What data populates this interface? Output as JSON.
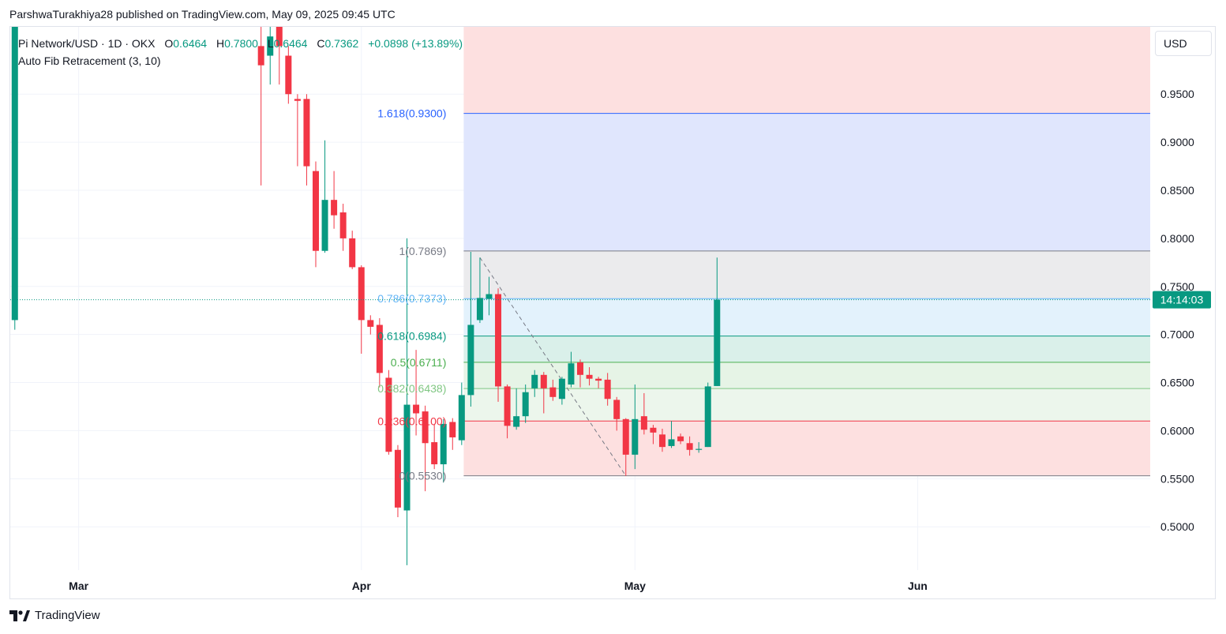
{
  "credit": "ParshwaTurakhiya28 published on TradingView.com, May 09, 2025 09:45 UTC",
  "legend": {
    "symbol": "Pi Network/USD · 1D · OKX",
    "open_label": "O",
    "open": "0.6464",
    "high_label": "H",
    "high": "0.7800",
    "low_label": "L",
    "low": "0.6464",
    "close_label": "C",
    "close": "0.7362",
    "change": "+0.0898 (+13.89%)",
    "indicator": "Auto Fib Retracement (3, 10)"
  },
  "currency_button": "USD",
  "brand": "TradingView",
  "chart_data": {
    "type": "candlestick",
    "title": "Pi Network/USD · 1D · OKX",
    "ylim": [
      0.455,
      1.02
    ],
    "y_ticks": [
      "0.5000",
      "0.5500",
      "0.6000",
      "0.6500",
      "0.7000",
      "0.7500",
      "0.8000",
      "0.8500",
      "0.9000",
      "0.9500"
    ],
    "x_ticks": [
      {
        "label": "Mar",
        "day": 0
      },
      {
        "label": "Apr",
        "day": 31
      },
      {
        "label": "May",
        "day": 61
      },
      {
        "label": "Jun",
        "day": 92
      }
    ],
    "x_range_days": [
      -7.5,
      117.5
    ],
    "current_price_label": "14:14:03",
    "current_price": 0.7362,
    "colors": {
      "up": "#089981",
      "down": "#f23645",
      "grid": "#f0f3fa",
      "axis_text": "#131722"
    },
    "candles": [
      {
        "day": -7,
        "o": 0.715,
        "h": 1.05,
        "l": 0.705,
        "c": 1.04
      },
      {
        "day": 20,
        "o": 1.0,
        "h": 1.03,
        "l": 0.855,
        "c": 0.98
      },
      {
        "day": 21,
        "o": 0.99,
        "h": 1.03,
        "l": 0.96,
        "c": 1.01
      },
      {
        "day": 22,
        "o": 1.02,
        "h": 1.03,
        "l": 0.96,
        "c": 1.0
      },
      {
        "day": 23,
        "o": 0.99,
        "h": 1.0,
        "l": 0.94,
        "c": 0.95
      },
      {
        "day": 24,
        "o": 0.945,
        "h": 0.95,
        "l": 0.875,
        "c": 0.943
      },
      {
        "day": 25,
        "o": 0.945,
        "h": 0.95,
        "l": 0.855,
        "c": 0.875
      },
      {
        "day": 26,
        "o": 0.87,
        "h": 0.88,
        "l": 0.77,
        "c": 0.787
      },
      {
        "day": 27,
        "o": 0.787,
        "h": 0.902,
        "l": 0.785,
        "c": 0.84
      },
      {
        "day": 28,
        "o": 0.84,
        "h": 0.87,
        "l": 0.81,
        "c": 0.824
      },
      {
        "day": 29,
        "o": 0.827,
        "h": 0.836,
        "l": 0.787,
        "c": 0.8
      },
      {
        "day": 30,
        "o": 0.8,
        "h": 0.808,
        "l": 0.768,
        "c": 0.77
      },
      {
        "day": 31,
        "o": 0.77,
        "h": 0.772,
        "l": 0.68,
        "c": 0.715
      },
      {
        "day": 32,
        "o": 0.715,
        "h": 0.72,
        "l": 0.7,
        "c": 0.708
      },
      {
        "day": 33,
        "o": 0.71,
        "h": 0.717,
        "l": 0.645,
        "c": 0.66
      },
      {
        "day": 34,
        "o": 0.655,
        "h": 0.663,
        "l": 0.575,
        "c": 0.578
      },
      {
        "day": 35,
        "o": 0.58,
        "h": 0.585,
        "l": 0.51,
        "c": 0.52
      },
      {
        "day": 36,
        "o": 0.517,
        "h": 0.8,
        "l": 0.46,
        "c": 0.627
      },
      {
        "day": 37,
        "o": 0.627,
        "h": 0.684,
        "l": 0.595,
        "c": 0.618
      },
      {
        "day": 38,
        "o": 0.62,
        "h": 0.626,
        "l": 0.537,
        "c": 0.587
      },
      {
        "day": 39,
        "o": 0.588,
        "h": 0.607,
        "l": 0.56,
        "c": 0.565
      },
      {
        "day": 40,
        "o": 0.565,
        "h": 0.612,
        "l": 0.546,
        "c": 0.607
      },
      {
        "day": 41,
        "o": 0.609,
        "h": 0.613,
        "l": 0.58,
        "c": 0.593
      },
      {
        "day": 42,
        "o": 0.59,
        "h": 0.65,
        "l": 0.585,
        "c": 0.637
      },
      {
        "day": 43,
        "o": 0.637,
        "h": 0.786,
        "l": 0.625,
        "c": 0.71
      },
      {
        "day": 44,
        "o": 0.715,
        "h": 0.78,
        "l": 0.712,
        "c": 0.738
      },
      {
        "day": 45,
        "o": 0.737,
        "h": 0.76,
        "l": 0.72,
        "c": 0.742
      },
      {
        "day": 46,
        "o": 0.742,
        "h": 0.748,
        "l": 0.63,
        "c": 0.646
      },
      {
        "day": 47,
        "o": 0.646,
        "h": 0.648,
        "l": 0.592,
        "c": 0.605
      },
      {
        "day": 48,
        "o": 0.604,
        "h": 0.644,
        "l": 0.601,
        "c": 0.615
      },
      {
        "day": 49,
        "o": 0.615,
        "h": 0.648,
        "l": 0.608,
        "c": 0.64
      },
      {
        "day": 50,
        "o": 0.644,
        "h": 0.663,
        "l": 0.635,
        "c": 0.658
      },
      {
        "day": 51,
        "o": 0.658,
        "h": 0.661,
        "l": 0.618,
        "c": 0.644
      },
      {
        "day": 52,
        "o": 0.645,
        "h": 0.653,
        "l": 0.631,
        "c": 0.635
      },
      {
        "day": 53,
        "o": 0.633,
        "h": 0.656,
        "l": 0.627,
        "c": 0.654
      },
      {
        "day": 54,
        "o": 0.648,
        "h": 0.682,
        "l": 0.645,
        "c": 0.67
      },
      {
        "day": 55,
        "o": 0.671,
        "h": 0.674,
        "l": 0.645,
        "c": 0.658
      },
      {
        "day": 56,
        "o": 0.658,
        "h": 0.666,
        "l": 0.647,
        "c": 0.654
      },
      {
        "day": 57,
        "o": 0.654,
        "h": 0.656,
        "l": 0.644,
        "c": 0.652
      },
      {
        "day": 58,
        "o": 0.653,
        "h": 0.66,
        "l": 0.626,
        "c": 0.633
      },
      {
        "day": 59,
        "o": 0.632,
        "h": 0.635,
        "l": 0.6,
        "c": 0.612
      },
      {
        "day": 60,
        "o": 0.612,
        "h": 0.613,
        "l": 0.553,
        "c": 0.575
      },
      {
        "day": 61,
        "o": 0.575,
        "h": 0.648,
        "l": 0.56,
        "c": 0.612
      },
      {
        "day": 62,
        "o": 0.615,
        "h": 0.639,
        "l": 0.596,
        "c": 0.601
      },
      {
        "day": 63,
        "o": 0.603,
        "h": 0.606,
        "l": 0.586,
        "c": 0.598
      },
      {
        "day": 64,
        "o": 0.596,
        "h": 0.602,
        "l": 0.578,
        "c": 0.583
      },
      {
        "day": 65,
        "o": 0.584,
        "h": 0.61,
        "l": 0.582,
        "c": 0.591
      },
      {
        "day": 66,
        "o": 0.594,
        "h": 0.597,
        "l": 0.586,
        "c": 0.589
      },
      {
        "day": 67,
        "o": 0.587,
        "h": 0.594,
        "l": 0.574,
        "c": 0.58
      },
      {
        "day": 68,
        "o": 0.58,
        "h": 0.588,
        "l": 0.577,
        "c": 0.581
      },
      {
        "day": 69,
        "o": 0.583,
        "h": 0.65,
        "l": 0.583,
        "c": 0.646
      },
      {
        "day": 70,
        "o": 0.6464,
        "h": 0.78,
        "l": 0.6464,
        "c": 0.7362
      }
    ],
    "fib": {
      "anchor_high": 0.7869,
      "anchor_low": 0.553,
      "start_day": 43,
      "levels": [
        {
          "ratio": "1.618",
          "value": 0.93,
          "label": "1.618(0.9300)",
          "color": "#2962ff"
        },
        {
          "ratio": "1",
          "value": 0.7869,
          "label": "1(0.7869)",
          "color": "#787b86"
        },
        {
          "ratio": "0.786",
          "value": 0.7373,
          "label": "0.786(0.7373)",
          "color": "#64b5f6"
        },
        {
          "ratio": "0.618",
          "value": 0.6984,
          "label": "0.618(0.6984)",
          "color": "#089981"
        },
        {
          "ratio": "0.5",
          "value": 0.6711,
          "label": "0.5(0.6711)",
          "color": "#4caf50"
        },
        {
          "ratio": "0.382",
          "value": 0.6438,
          "label": "0.382(0.6438)",
          "color": "#81c784"
        },
        {
          "ratio": "0.236",
          "value": 0.61,
          "label": "0.236(0.6100)",
          "color": "#f23645"
        },
        {
          "ratio": "0",
          "value": 0.553,
          "label": "0(0.5530)",
          "color": "#787b86"
        }
      ],
      "zones": [
        {
          "from": 0.93,
          "to": 1.02,
          "color": "#fde0e0"
        },
        {
          "from": 0.7869,
          "to": 0.93,
          "color": "#e0e6fd"
        },
        {
          "from": 0.7373,
          "to": 0.7869,
          "color": "#ebebed"
        },
        {
          "from": 0.6984,
          "to": 0.7373,
          "color": "#e3f2fc"
        },
        {
          "from": 0.6711,
          "to": 0.6984,
          "color": "#daf0ea"
        },
        {
          "from": 0.6438,
          "to": 0.6711,
          "color": "#e6f4e6"
        },
        {
          "from": 0.61,
          "to": 0.6438,
          "color": "#ecf6ec"
        },
        {
          "from": 0.553,
          "to": 0.61,
          "color": "#fde0e0"
        }
      ],
      "trendline": {
        "from": {
          "day": 44,
          "value": 0.78
        },
        "to": {
          "day": 60,
          "value": 0.553
        }
      }
    }
  }
}
